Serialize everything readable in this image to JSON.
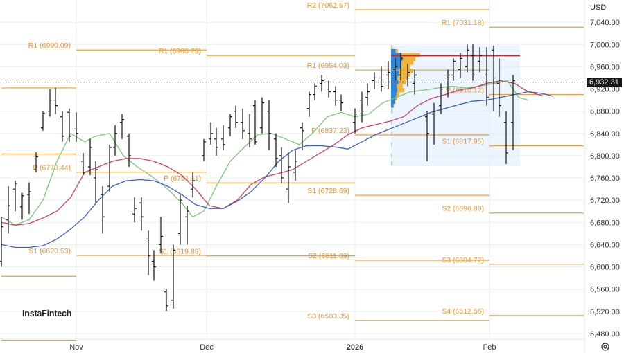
{
  "currency": "USD",
  "watermark": "InstaFintech",
  "last_price_label": "6,932.31",
  "colors": {
    "level": "#e8a23a",
    "fast_ma": "#7cc576",
    "mid_ma": "#cc3f6b",
    "slow_ma": "#3b5fc7",
    "bars": "#111111",
    "poc": "#c0282d",
    "profile_blue": "#2f86d6",
    "profile_gold": "#f1b43a",
    "value_area": "#dcecfb"
  },
  "chart_data": {
    "type": "ohlc",
    "ylim": [
      6470,
      7080
    ],
    "y_ticks": [
      7040,
      7000,
      6960,
      6920,
      6880,
      6840,
      6800,
      6760,
      6720,
      6680,
      6640,
      6600,
      6560,
      6520,
      6480
    ],
    "y_tick_labels": [
      "7,040.00",
      "7,000.00",
      "6,960.00",
      "6,920.00",
      "6,880.00",
      "6,840.00",
      "6,800.00",
      "6,760.00",
      "6,720.00",
      "6,680.00",
      "6,640.00",
      "6,600.00",
      "6,560.00",
      "6,520.00",
      "6,480.00"
    ],
    "x_labels": [
      {
        "label": "Nov",
        "bold": false,
        "t": 54
      },
      {
        "label": "Dec",
        "bold": false,
        "t": 148
      },
      {
        "label": "2026",
        "bold": true,
        "t": 255
      },
      {
        "label": "Feb",
        "bold": false,
        "t": 352
      }
    ],
    "last_price": 6932.31,
    "pivot_levels": [
      {
        "label": "R1 (6990.09)",
        "value": 6990.09,
        "t0": 54,
        "t1": 148
      },
      {
        "label": "P (6770.44)",
        "value": 6770.44,
        "t0": 54,
        "t1": 148
      },
      {
        "label": "S1 (6620.53)",
        "value": 6620.53,
        "t0": 54,
        "t1": 148
      },
      {
        "label": "R1 (6980.29)",
        "value": 6980.29,
        "t0": 148,
        "t1": 255
      },
      {
        "label": "P (6751.11)",
        "value": 6751.11,
        "t0": 148,
        "t1": 255
      },
      {
        "label": "S1 (6619.89)",
        "value": 6619.89,
        "t0": 148,
        "t1": 255
      },
      {
        "label": "R2 (7062.57)",
        "value": 7062.57,
        "t0": 255,
        "t1": 352
      },
      {
        "label": "R1 (6954.03)",
        "value": 6954.03,
        "t0": 255,
        "t1": 352
      },
      {
        "label": "P (6837.23)",
        "value": 6837.23,
        "t0": 255,
        "t1": 352
      },
      {
        "label": "S1 (6728.69)",
        "value": 6728.69,
        "t0": 255,
        "t1": 352
      },
      {
        "label": "S2 (6611.89)",
        "value": 6611.89,
        "t0": 255,
        "t1": 352
      },
      {
        "label": "S3 (6503.35)",
        "value": 6503.35,
        "t0": 255,
        "t1": 352
      },
      {
        "label": "R1 (7031.18)",
        "value": 7031.18,
        "t0": 352,
        "t1": 420
      },
      {
        "label": "P (6910.12)",
        "value": 6910.12,
        "t0": 352,
        "t1": 420
      },
      {
        "label": "S1 (6817.95)",
        "value": 6817.95,
        "t0": 352,
        "t1": 420
      },
      {
        "label": "S2 (6696.89)",
        "value": 6696.89,
        "t0": 352,
        "t1": 420
      },
      {
        "label": "S3 (6604.72)",
        "value": 6604.72,
        "t0": 352,
        "t1": 420
      },
      {
        "label": "S4 (6512.56)",
        "value": 6512.56,
        "t0": 352,
        "t1": 420
      }
    ],
    "orphan_levels": [
      {
        "value": 6922,
        "t0": 0,
        "t1": 54
      },
      {
        "value": 6803,
        "t0": 0,
        "t1": 54
      },
      {
        "value": 6583,
        "t0": 0,
        "t1": 54
      },
      {
        "value": 6468,
        "t0": 0,
        "t1": 54
      }
    ],
    "poc": {
      "value": 6980,
      "t0": 281,
      "t1": 374
    },
    "value_area": {
      "t0": 281,
      "t1": 374,
      "high": 6998,
      "low": 6781
    },
    "ohlc": [
      {
        "t": 0,
        "o": 6610,
        "h": 6690,
        "l": 6600,
        "c": 6672
      },
      {
        "t": 5,
        "o": 6685,
        "h": 6745,
        "l": 6660,
        "c": 6710
      },
      {
        "t": 10,
        "o": 6740,
        "h": 6755,
        "l": 6700,
        "c": 6750
      },
      {
        "t": 15,
        "o": 6708,
        "h": 6733,
        "l": 6685,
        "c": 6728
      },
      {
        "t": 20,
        "o": 6730,
        "h": 6752,
        "l": 6695,
        "c": 6735
      },
      {
        "t": 25,
        "o": 6775,
        "h": 6806,
        "l": 6770,
        "c": 6798
      },
      {
        "t": 30,
        "o": 6850,
        "h": 6880,
        "l": 6845,
        "c": 6876
      },
      {
        "t": 35,
        "o": 6880,
        "h": 6920,
        "l": 6870,
        "c": 6900
      },
      {
        "t": 39,
        "o": 6900,
        "h": 6922,
        "l": 6875,
        "c": 6890
      },
      {
        "t": 44,
        "o": 6870,
        "h": 6880,
        "l": 6825,
        "c": 6835
      },
      {
        "t": 49,
        "o": 6878,
        "h": 6885,
        "l": 6825,
        "c": 6835
      },
      {
        "t": 54,
        "o": 6848,
        "h": 6878,
        "l": 6825,
        "c": 6840
      },
      {
        "t": 59,
        "o": 6790,
        "h": 6805,
        "l": 6765,
        "c": 6770
      },
      {
        "t": 64,
        "o": 6780,
        "h": 6830,
        "l": 6765,
        "c": 6815
      },
      {
        "t": 68,
        "o": 6760,
        "h": 6790,
        "l": 6715,
        "c": 6775
      },
      {
        "t": 73,
        "o": 6730,
        "h": 6745,
        "l": 6660,
        "c": 6690
      },
      {
        "t": 78,
        "o": 6745,
        "h": 6820,
        "l": 6735,
        "c": 6815
      },
      {
        "t": 82,
        "o": 6815,
        "h": 6855,
        "l": 6800,
        "c": 6840
      },
      {
        "t": 87,
        "o": 6860,
        "h": 6875,
        "l": 6830,
        "c": 6865
      },
      {
        "t": 92,
        "o": 6835,
        "h": 6840,
        "l": 6780,
        "c": 6800
      },
      {
        "t": 96,
        "o": 6695,
        "h": 6725,
        "l": 6680,
        "c": 6705
      },
      {
        "t": 101,
        "o": 6715,
        "h": 6725,
        "l": 6665,
        "c": 6690
      },
      {
        "t": 106,
        "o": 6650,
        "h": 6665,
        "l": 6585,
        "c": 6620
      },
      {
        "t": 110,
        "o": 6610,
        "h": 6630,
        "l": 6575,
        "c": 6600
      },
      {
        "t": 115,
        "o": 6640,
        "h": 6690,
        "l": 6625,
        "c": 6655
      },
      {
        "t": 119,
        "o": 6555,
        "h": 6560,
        "l": 6520,
        "c": 6530
      },
      {
        "t": 124,
        "o": 6540,
        "h": 6640,
        "l": 6525,
        "c": 6630
      },
      {
        "t": 129,
        "o": 6660,
        "h": 6730,
        "l": 6640,
        "c": 6720
      },
      {
        "t": 134,
        "o": 6690,
        "h": 6710,
        "l": 6640,
        "c": 6700
      },
      {
        "t": 138,
        "o": 6740,
        "h": 6770,
        "l": 6725,
        "c": 6755
      },
      {
        "t": 146,
        "o": 6800,
        "h": 6830,
        "l": 6790,
        "c": 6825
      },
      {
        "t": 151,
        "o": 6830,
        "h": 6860,
        "l": 6820,
        "c": 6840
      },
      {
        "t": 155,
        "o": 6830,
        "h": 6850,
        "l": 6800,
        "c": 6815
      },
      {
        "t": 160,
        "o": 6830,
        "h": 6855,
        "l": 6810,
        "c": 6820
      },
      {
        "t": 165,
        "o": 6850,
        "h": 6875,
        "l": 6835,
        "c": 6870
      },
      {
        "t": 169,
        "o": 6880,
        "h": 6890,
        "l": 6850,
        "c": 6860
      },
      {
        "t": 174,
        "o": 6860,
        "h": 6885,
        "l": 6830,
        "c": 6845
      },
      {
        "t": 179,
        "o": 6840,
        "h": 6875,
        "l": 6815,
        "c": 6830
      },
      {
        "t": 183,
        "o": 6890,
        "h": 6900,
        "l": 6820,
        "c": 6825
      },
      {
        "t": 188,
        "o": 6850,
        "h": 6905,
        "l": 6840,
        "c": 6895
      },
      {
        "t": 193,
        "o": 6880,
        "h": 6900,
        "l": 6810,
        "c": 6840
      },
      {
        "t": 198,
        "o": 6830,
        "h": 6840,
        "l": 6780,
        "c": 6795
      },
      {
        "t": 202,
        "o": 6800,
        "h": 6815,
        "l": 6750,
        "c": 6760
      },
      {
        "t": 207,
        "o": 6740,
        "h": 6805,
        "l": 6715,
        "c": 6780
      },
      {
        "t": 212,
        "o": 6770,
        "h": 6810,
        "l": 6755,
        "c": 6790
      },
      {
        "t": 217,
        "o": 6850,
        "h": 6860,
        "l": 6810,
        "c": 6845
      },
      {
        "t": 222,
        "o": 6885,
        "h": 6915,
        "l": 6870,
        "c": 6910
      },
      {
        "t": 226,
        "o": 6910,
        "h": 6930,
        "l": 6900,
        "c": 6925
      },
      {
        "t": 231,
        "o": 6930,
        "h": 6945,
        "l": 6915,
        "c": 6935
      },
      {
        "t": 236,
        "o": 6920,
        "h": 6935,
        "l": 6905,
        "c": 6915
      },
      {
        "t": 241,
        "o": 6915,
        "h": 6925,
        "l": 6890,
        "c": 6900
      },
      {
        "t": 245,
        "o": 6900,
        "h": 6910,
        "l": 6880,
        "c": 6895
      },
      {
        "t": 255,
        "o": 6860,
        "h": 6885,
        "l": 6840,
        "c": 6875
      },
      {
        "t": 260,
        "o": 6900,
        "h": 6915,
        "l": 6860,
        "c": 6880
      },
      {
        "t": 264,
        "o": 6905,
        "h": 6930,
        "l": 6890,
        "c": 6915
      },
      {
        "t": 269,
        "o": 6935,
        "h": 6950,
        "l": 6920,
        "c": 6940
      },
      {
        "t": 274,
        "o": 6940,
        "h": 6960,
        "l": 6915,
        "c": 6925
      },
      {
        "t": 279,
        "o": 6945,
        "h": 6970,
        "l": 6920,
        "c": 6950
      },
      {
        "t": 284,
        "o": 6955,
        "h": 6975,
        "l": 6935,
        "c": 6960
      },
      {
        "t": 288,
        "o": 6945,
        "h": 6985,
        "l": 6935,
        "c": 6975
      },
      {
        "t": 293,
        "o": 6940,
        "h": 6965,
        "l": 6925,
        "c": 6950
      },
      {
        "t": 298,
        "o": 6930,
        "h": 6955,
        "l": 6910,
        "c": 6945
      },
      {
        "t": 307,
        "o": 6870,
        "h": 6880,
        "l": 6790,
        "c": 6840
      },
      {
        "t": 312,
        "o": 6875,
        "h": 6895,
        "l": 6820,
        "c": 6880
      },
      {
        "t": 317,
        "o": 6890,
        "h": 6930,
        "l": 6875,
        "c": 6920
      },
      {
        "t": 322,
        "o": 6920,
        "h": 6955,
        "l": 6905,
        "c": 6945
      },
      {
        "t": 326,
        "o": 6945,
        "h": 6975,
        "l": 6935,
        "c": 6970
      },
      {
        "t": 331,
        "o": 6955,
        "h": 6985,
        "l": 6940,
        "c": 6975
      },
      {
        "t": 336,
        "o": 6960,
        "h": 7000,
        "l": 6950,
        "c": 6990
      },
      {
        "t": 340,
        "o": 6980,
        "h": 7000,
        "l": 6935,
        "c": 6945
      },
      {
        "t": 345,
        "o": 6970,
        "h": 6995,
        "l": 6950,
        "c": 6980
      },
      {
        "t": 350,
        "o": 6945,
        "h": 6995,
        "l": 6890,
        "c": 6905
      },
      {
        "t": 355,
        "o": 6990,
        "h": 6998,
        "l": 6880,
        "c": 6940
      },
      {
        "t": 359,
        "o": 6930,
        "h": 6975,
        "l": 6870,
        "c": 6890
      },
      {
        "t": 364,
        "o": 6860,
        "h": 6880,
        "l": 6785,
        "c": 6805
      },
      {
        "t": 369,
        "o": 6860,
        "h": 6945,
        "l": 6810,
        "c": 6935
      }
    ],
    "ma_fast": [
      [
        0,
        6690
      ],
      [
        10,
        6675
      ],
      [
        20,
        6685
      ],
      [
        30,
        6720
      ],
      [
        40,
        6790
      ],
      [
        50,
        6840
      ],
      [
        60,
        6825
      ],
      [
        68,
        6835
      ],
      [
        78,
        6840
      ],
      [
        88,
        6800
      ],
      [
        98,
        6780
      ],
      [
        110,
        6760
      ],
      [
        120,
        6740
      ],
      [
        130,
        6715
      ],
      [
        138,
        6690
      ],
      [
        146,
        6700
      ],
      [
        155,
        6745
      ],
      [
        165,
        6790
      ],
      [
        175,
        6815
      ],
      [
        185,
        6838
      ],
      [
        195,
        6840
      ],
      [
        205,
        6830
      ],
      [
        215,
        6820
      ],
      [
        225,
        6842
      ],
      [
        235,
        6870
      ],
      [
        245,
        6878
      ],
      [
        255,
        6870
      ],
      [
        265,
        6875
      ],
      [
        275,
        6895
      ],
      [
        285,
        6905
      ],
      [
        295,
        6915
      ],
      [
        305,
        6918
      ],
      [
        315,
        6922
      ],
      [
        325,
        6925
      ],
      [
        335,
        6922
      ],
      [
        345,
        6925
      ],
      [
        355,
        6930
      ],
      [
        365,
        6935
      ],
      [
        373,
        6905
      ],
      [
        380,
        6900
      ]
    ],
    "ma_mid": [
      [
        0,
        6680
      ],
      [
        10,
        6675
      ],
      [
        20,
        6678
      ],
      [
        30,
        6688
      ],
      [
        40,
        6700
      ],
      [
        50,
        6725
      ],
      [
        60,
        6770
      ],
      [
        70,
        6780
      ],
      [
        80,
        6790
      ],
      [
        90,
        6795
      ],
      [
        100,
        6795
      ],
      [
        110,
        6790
      ],
      [
        120,
        6780
      ],
      [
        130,
        6765
      ],
      [
        140,
        6740
      ],
      [
        150,
        6710
      ],
      [
        160,
        6705
      ],
      [
        170,
        6720
      ],
      [
        180,
        6748
      ],
      [
        190,
        6762
      ],
      [
        200,
        6768
      ],
      [
        210,
        6775
      ],
      [
        220,
        6790
      ],
      [
        230,
        6805
      ],
      [
        240,
        6820
      ],
      [
        250,
        6838
      ],
      [
        260,
        6850
      ],
      [
        270,
        6856
      ],
      [
        280,
        6862
      ],
      [
        290,
        6870
      ],
      [
        300,
        6890
      ],
      [
        310,
        6903
      ],
      [
        320,
        6910
      ],
      [
        330,
        6918
      ],
      [
        340,
        6922
      ],
      [
        350,
        6930
      ],
      [
        360,
        6935
      ],
      [
        370,
        6930
      ],
      [
        380,
        6915
      ],
      [
        390,
        6908
      ]
    ],
    "ma_slow": [
      [
        0,
        6640
      ],
      [
        10,
        6635
      ],
      [
        20,
        6635
      ],
      [
        30,
        6638
      ],
      [
        40,
        6650
      ],
      [
        50,
        6668
      ],
      [
        60,
        6690
      ],
      [
        70,
        6720
      ],
      [
        80,
        6745
      ],
      [
        90,
        6755
      ],
      [
        100,
        6757
      ],
      [
        110,
        6755
      ],
      [
        120,
        6745
      ],
      [
        130,
        6730
      ],
      [
        140,
        6712
      ],
      [
        150,
        6705
      ],
      [
        160,
        6705
      ],
      [
        170,
        6718
      ],
      [
        180,
        6735
      ],
      [
        190,
        6760
      ],
      [
        200,
        6790
      ],
      [
        210,
        6810
      ],
      [
        220,
        6818
      ],
      [
        230,
        6818
      ],
      [
        240,
        6816
      ],
      [
        250,
        6812
      ],
      [
        260,
        6825
      ],
      [
        270,
        6838
      ],
      [
        280,
        6848
      ],
      [
        290,
        6858
      ],
      [
        300,
        6868
      ],
      [
        310,
        6878
      ],
      [
        320,
        6885
      ],
      [
        330,
        6892
      ],
      [
        340,
        6898
      ],
      [
        350,
        6900
      ],
      [
        360,
        6905
      ],
      [
        370,
        6910
      ],
      [
        380,
        6915
      ],
      [
        390,
        6912
      ],
      [
        398,
        6907
      ]
    ],
    "volume_profile": [
      {
        "price": 6995,
        "blue": 0.06,
        "gold": 0.04
      },
      {
        "price": 6988,
        "blue": 0.22,
        "gold": 0.12
      },
      {
        "price": 6981,
        "blue": 0.45,
        "gold": 0.95
      },
      {
        "price": 6974,
        "blue": 0.55,
        "gold": 0.62
      },
      {
        "price": 6967,
        "blue": 0.5,
        "gold": 0.58
      },
      {
        "price": 6960,
        "blue": 0.48,
        "gold": 0.44
      },
      {
        "price": 6953,
        "blue": 0.4,
        "gold": 0.66
      },
      {
        "price": 6946,
        "blue": 0.38,
        "gold": 0.52
      },
      {
        "price": 6939,
        "blue": 0.3,
        "gold": 0.48
      },
      {
        "price": 6932,
        "blue": 0.36,
        "gold": 0.34
      },
      {
        "price": 6925,
        "blue": 0.28,
        "gold": 0.28
      },
      {
        "price": 6918,
        "blue": 0.3,
        "gold": 0.34
      },
      {
        "price": 6911,
        "blue": 0.26,
        "gold": 0.15
      },
      {
        "price": 6904,
        "blue": 0.22,
        "gold": 0.08
      },
      {
        "price": 6897,
        "blue": 0.2,
        "gold": 0.05
      },
      {
        "price": 6890,
        "blue": 0.12,
        "gold": 0.04
      },
      {
        "price": 6880,
        "blue": 0.05,
        "gold": 0.05
      },
      {
        "price": 6860,
        "blue": 0.04,
        "gold": 0.04
      },
      {
        "price": 6840,
        "blue": 0.04,
        "gold": 0.03
      },
      {
        "price": 6820,
        "blue": 0.04,
        "gold": 0.03
      },
      {
        "price": 6800,
        "blue": 0.03,
        "gold": 0.03
      },
      {
        "price": 6786,
        "blue": 0.06,
        "gold": 0.04
      }
    ]
  }
}
